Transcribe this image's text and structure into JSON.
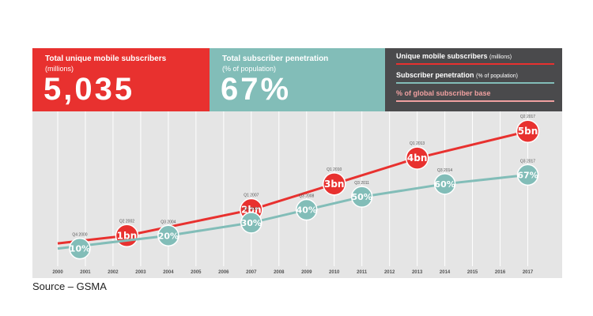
{
  "panels": {
    "red": {
      "title": "Total unique mobile subscribers",
      "subtitle": "(millions)",
      "value": "5,035"
    },
    "teal": {
      "title": "Total subscriber penetration",
      "subtitle": "(% of population)",
      "value": "67%"
    },
    "legend": [
      {
        "label": "Unique mobile subscribers",
        "note": "(millions)"
      },
      {
        "label": "Subscriber penetration",
        "note": "(% of population)"
      },
      {
        "label": "% of global subscriber base",
        "note": ""
      }
    ]
  },
  "source": "Source – GSMA",
  "colors": {
    "red": "#e8312f",
    "teal": "#82bdb8",
    "pink": "#f0a0a0",
    "dark": "#4a4a4c",
    "bg": "#e5e5e5"
  },
  "chart_data": {
    "type": "line",
    "x": [
      2000,
      2001,
      2002,
      2003,
      2004,
      2005,
      2006,
      2007,
      2008,
      2009,
      2010,
      2011,
      2012,
      2013,
      2014,
      2015,
      2016,
      2017
    ],
    "xlim": [
      2000,
      2017.5
    ],
    "grid": true,
    "series": [
      {
        "name": "Unique mobile subscribers",
        "unit": "millions",
        "color": "#e8312f",
        "points": [
          [
            2000,
            700
          ],
          [
            2002.5,
            1000
          ],
          [
            2007,
            2000
          ],
          [
            2010,
            3000
          ],
          [
            2013,
            4000
          ],
          [
            2017,
            5035
          ]
        ],
        "ylim": [
          0,
          5500
        ],
        "markers": [
          {
            "x": 2002.5,
            "y": 1000,
            "label": "1bn",
            "note": "Q2 2002"
          },
          {
            "x": 2007,
            "y": 2000,
            "label": "2bn",
            "note": "Q1 2007"
          },
          {
            "x": 2010,
            "y": 3000,
            "label": "3bn",
            "note": "Q1 2010"
          },
          {
            "x": 2013,
            "y": 4000,
            "label": "4bn",
            "note": "Q1 2013"
          },
          {
            "x": 2017,
            "y": 5035,
            "label": "5bn",
            "note": "Q2 2017"
          }
        ]
      },
      {
        "name": "Subscriber penetration",
        "unit": "% of population",
        "color": "#82bdb8",
        "points": [
          [
            2000,
            10
          ],
          [
            2004,
            20
          ],
          [
            2007,
            30
          ],
          [
            2009,
            40
          ],
          [
            2011,
            50
          ],
          [
            2014,
            60
          ],
          [
            2017,
            67
          ]
        ],
        "ylim": [
          0,
          110
        ],
        "markers": [
          {
            "x": 2000.8,
            "y": 10,
            "label": "10%",
            "note": "Q4 2000"
          },
          {
            "x": 2004,
            "y": 20,
            "label": "20%",
            "note": "Q3 2004"
          },
          {
            "x": 2007,
            "y": 30,
            "label": "30%",
            "note": "Q1 2007"
          },
          {
            "x": 2009,
            "y": 40,
            "label": "40%",
            "note": "Q3 2008"
          },
          {
            "x": 2011,
            "y": 50,
            "label": "50%",
            "note": "Q3 2011"
          },
          {
            "x": 2014,
            "y": 60,
            "label": "60%",
            "note": "Q3 2014"
          },
          {
            "x": 2017,
            "y": 67,
            "label": "67%",
            "note": "Q3 2017"
          }
        ]
      }
    ]
  }
}
